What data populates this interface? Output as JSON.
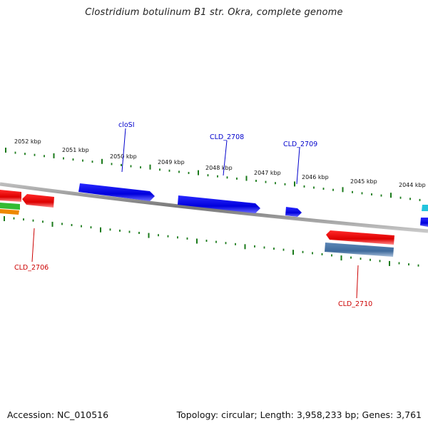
{
  "title": "Clostridium botulinum B1 str. Okra, complete genome",
  "footer": {
    "accession": "Accession: NC_010516",
    "summary": "Topology: circular; Length: 3,958,233 bp; Genes: 3,761"
  },
  "scale": {
    "labels": [
      "2052 kbp",
      "2051 kbp",
      "2050 kbp",
      "2049 kbp",
      "2048 kbp",
      "2047 kbp",
      "2046 kbp",
      "2045 kbp",
      "2044 kbp"
    ],
    "tick_color": "#1a7a1a"
  },
  "genes": [
    {
      "name": "cloSI",
      "strand": "forward",
      "color": "#0000cc"
    },
    {
      "name": "CLD_2708",
      "strand": "forward",
      "color": "#0000cc"
    },
    {
      "name": "CLD_2709",
      "strand": "forward",
      "color": "#0000cc"
    },
    {
      "name": "CLD_2706",
      "strand": "reverse",
      "color": "#cc0000"
    },
    {
      "name": "CLD_2710",
      "strand": "reverse",
      "color": "#cc0000"
    }
  ],
  "colors": {
    "forward_gene": "#1010e0",
    "reverse_gene": "#e01010",
    "backbone": "#8a8a8a",
    "label_forward": "#0000cc",
    "label_reverse": "#cc0000"
  }
}
